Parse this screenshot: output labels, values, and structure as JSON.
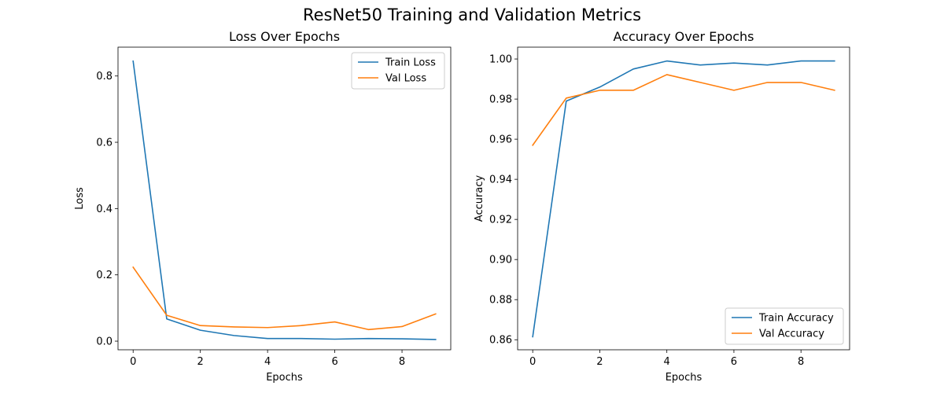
{
  "figure": {
    "suptitle": "ResNet50 Training and Validation Metrics"
  },
  "chart_data": [
    {
      "type": "line",
      "title": "Loss Over Epochs",
      "xlabel": "Epochs",
      "ylabel": "Loss",
      "x": [
        0,
        1,
        2,
        3,
        4,
        5,
        6,
        7,
        8,
        9
      ],
      "xlim": [
        -0.45,
        9.45
      ],
      "ylim": [
        -0.026,
        0.887
      ],
      "xticks": [
        0,
        2,
        4,
        6,
        8
      ],
      "yticks": [
        0.0,
        0.2,
        0.4,
        0.6,
        0.8
      ],
      "ytick_labels": [
        "0.0",
        "0.2",
        "0.4",
        "0.6",
        "0.8"
      ],
      "legend_position": "upper right",
      "series": [
        {
          "name": "Train Loss",
          "color": "#1f77b4",
          "values": [
            0.845,
            0.067,
            0.033,
            0.017,
            0.008,
            0.008,
            0.006,
            0.008,
            0.007,
            0.005
          ]
        },
        {
          "name": "Val Loss",
          "color": "#ff7f0e",
          "values": [
            0.223,
            0.078,
            0.047,
            0.043,
            0.041,
            0.047,
            0.058,
            0.035,
            0.044,
            0.082
          ]
        }
      ]
    },
    {
      "type": "line",
      "title": "Accuracy Over Epochs",
      "xlabel": "Epochs",
      "ylabel": "Accuracy",
      "x": [
        0,
        1,
        2,
        3,
        4,
        5,
        6,
        7,
        8,
        9
      ],
      "xlim": [
        -0.45,
        9.45
      ],
      "ylim": [
        0.855,
        1.0059
      ],
      "xticks": [
        0,
        2,
        4,
        6,
        8
      ],
      "yticks": [
        0.86,
        0.88,
        0.9,
        0.92,
        0.94,
        0.96,
        0.98,
        1.0
      ],
      "ytick_labels": [
        "0.86",
        "0.88",
        "0.90",
        "0.92",
        "0.94",
        "0.96",
        "0.98",
        "1.00"
      ],
      "legend_position": "lower right",
      "series": [
        {
          "name": "Train Accuracy",
          "color": "#1f77b4",
          "values": [
            0.8615,
            0.979,
            0.986,
            0.995,
            0.999,
            0.997,
            0.998,
            0.997,
            0.999,
            0.999
          ]
        },
        {
          "name": "Val Accuracy",
          "color": "#ff7f0e",
          "values": [
            0.957,
            0.9805,
            0.9844,
            0.9844,
            0.9922,
            0.9883,
            0.9844,
            0.9883,
            0.9883,
            0.9844
          ]
        }
      ]
    }
  ]
}
